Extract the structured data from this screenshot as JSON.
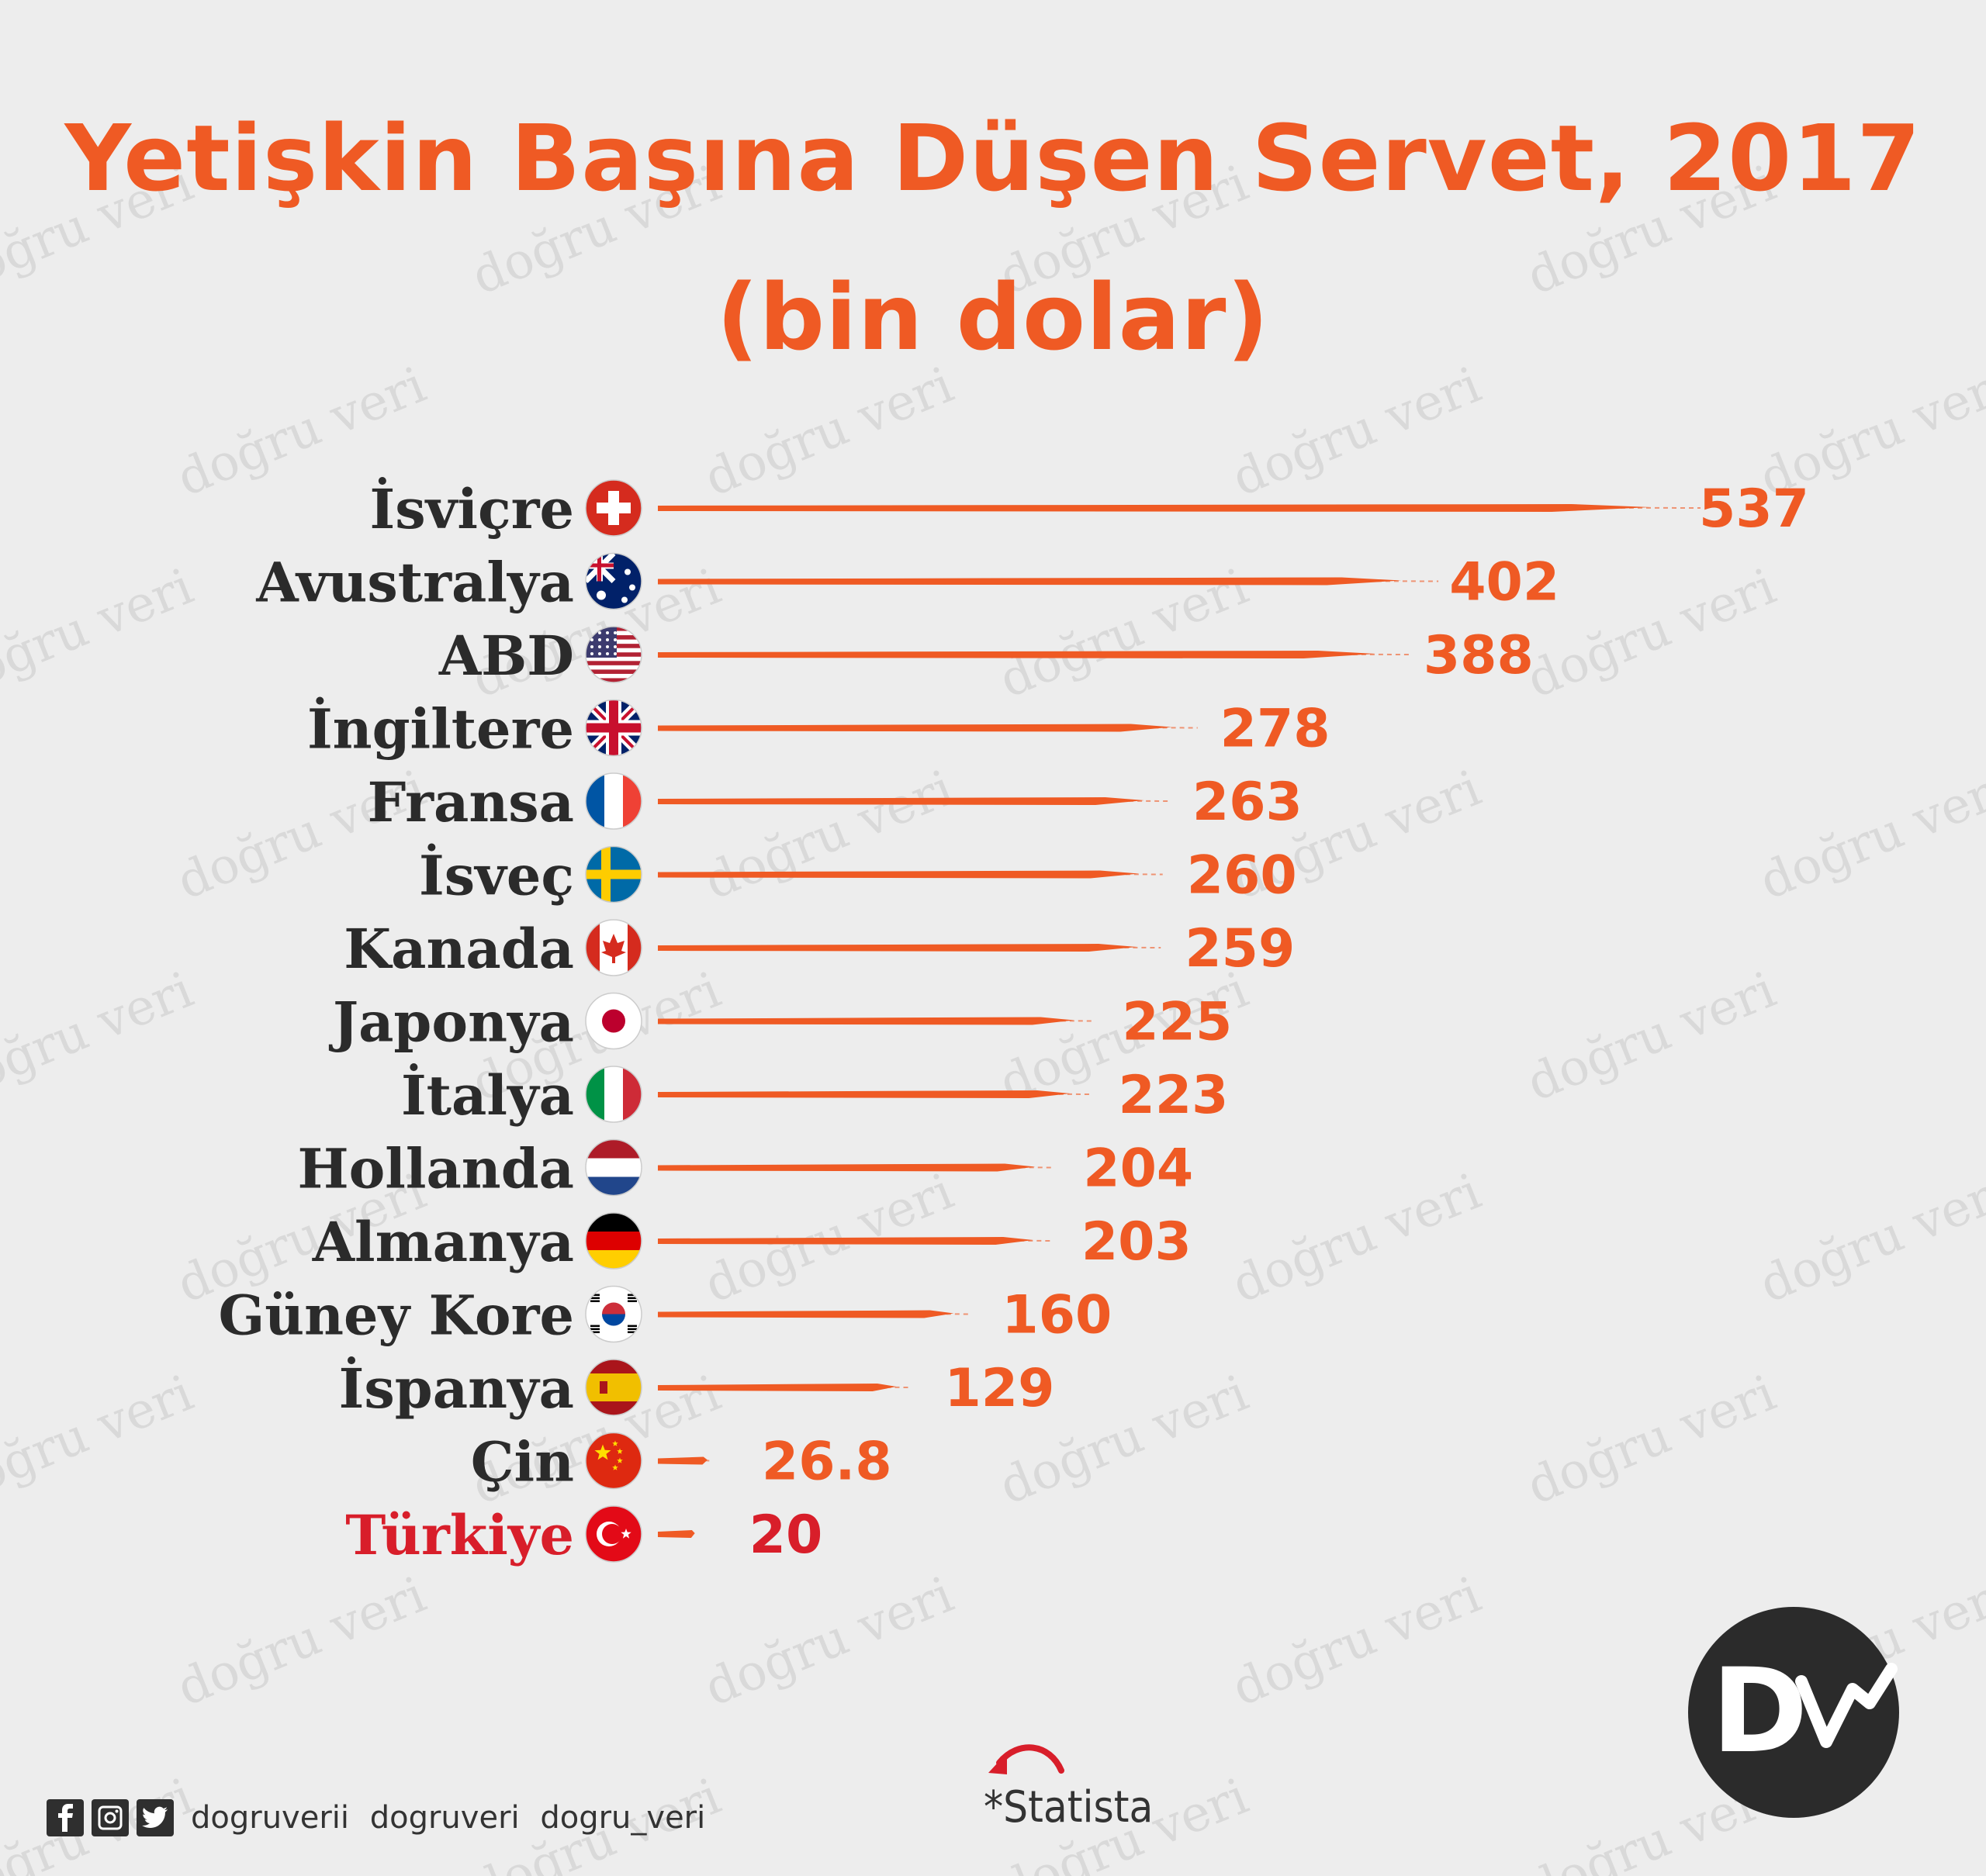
{
  "title": {
    "line1": "Yetişkin Başına Düşen Servet, 2017",
    "line2": "(bin dolar)"
  },
  "chart_data": {
    "type": "bar",
    "orientation": "horizontal",
    "categories": [
      "İsviçre",
      "Avustralya",
      "ABD",
      "İngiltere",
      "Fransa",
      "İsveç",
      "Kanada",
      "Japonya",
      "İtalya",
      "Hollanda",
      "Almanya",
      "Güney Kore",
      "İspanya",
      "Çin",
      "Türkiye"
    ],
    "values": [
      537,
      402,
      388,
      278,
      263,
      260,
      259,
      225,
      223,
      204,
      203,
      160,
      129,
      26.8,
      20
    ],
    "value_labels": [
      "537",
      "402",
      "388",
      "278",
      "263",
      "260",
      "259",
      "225",
      "223",
      "204",
      "203",
      "160",
      "129",
      "26.8",
      "20"
    ],
    "highlight": "Türkiye",
    "flag_icons": [
      "switzerland-flag-icon",
      "australia-flag-icon",
      "usa-flag-icon",
      "uk-flag-icon",
      "france-flag-icon",
      "sweden-flag-icon",
      "canada-flag-icon",
      "japan-flag-icon",
      "italy-flag-icon",
      "netherlands-flag-icon",
      "germany-flag-icon",
      "south-korea-flag-icon",
      "spain-flag-icon",
      "china-flag-icon",
      "turkey-flag-icon"
    ],
    "colors": {
      "bar": "#ef5a24",
      "value": "#ef5a24",
      "label": "#2b2b2b",
      "highlight": "#d81e2a"
    }
  },
  "watermark": "doğru veri",
  "footer": {
    "social_icons": [
      "facebook-icon",
      "instagram-icon",
      "twitter-icon"
    ],
    "handles": [
      "dogruverii",
      "dogruveri",
      "dogru_veri"
    ],
    "source": "*Statista",
    "logo_text": "Dv"
  }
}
